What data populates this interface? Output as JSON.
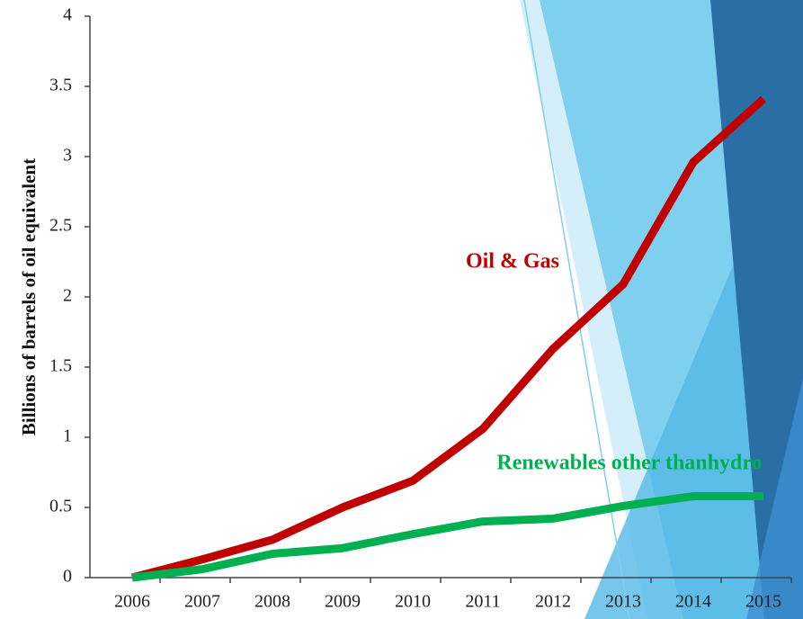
{
  "chart_data": {
    "type": "line",
    "y_label": "Billions of barrels of oil equivalent",
    "categories": [
      "2006",
      "2007",
      "2008",
      "2009",
      "2010",
      "2011",
      "2012",
      "2013",
      "2014",
      "2015"
    ],
    "series": [
      {
        "name": "Oil & Gas",
        "color": "#c00000",
        "values": [
          0,
          0.13,
          0.27,
          0.5,
          0.69,
          1.06,
          1.63,
          2.09,
          2.96,
          3.41
        ]
      },
      {
        "name": "Renewables other thanhydro",
        "color": "#00b050",
        "values": [
          0,
          0.06,
          0.17,
          0.21,
          0.31,
          0.4,
          0.42,
          0.51,
          0.58,
          0.58
        ]
      }
    ],
    "ylim": [
      0,
      4
    ],
    "yticks": [
      0,
      0.5,
      1,
      1.5,
      2,
      2.5,
      3,
      3.5,
      4
    ]
  }
}
